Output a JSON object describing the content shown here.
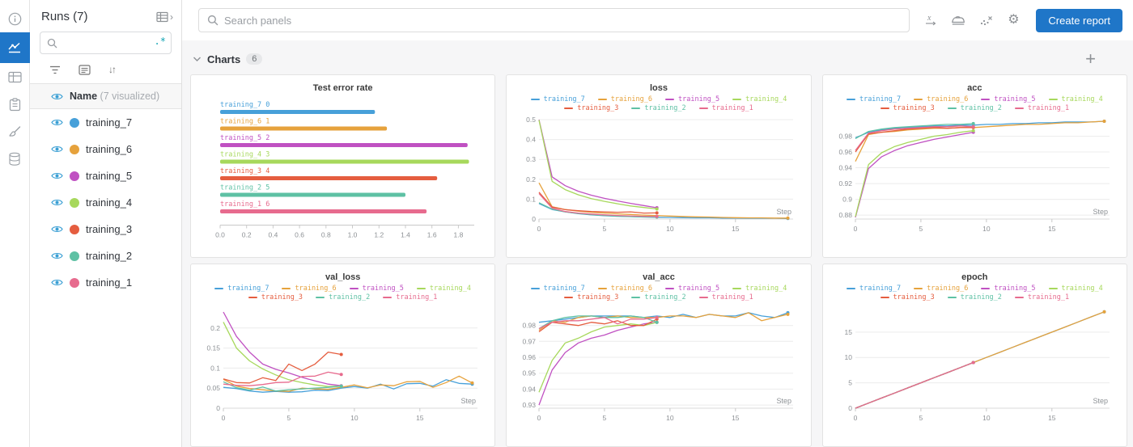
{
  "rail": {
    "items": [
      {
        "name": "info-icon",
        "active": false
      },
      {
        "name": "line-chart-icon",
        "active": true
      },
      {
        "name": "table-icon",
        "active": false
      },
      {
        "name": "clipboard-icon",
        "active": false
      },
      {
        "name": "brush-icon",
        "active": false
      },
      {
        "name": "database-icon",
        "active": false
      }
    ]
  },
  "runs_panel": {
    "title": "Runs (7)",
    "search_value": "",
    "regex_toggle": ".*",
    "name_label": "Name",
    "visualized_label": "(7 visualized)",
    "runs": [
      {
        "name": "training_7",
        "color": "#47a0d9"
      },
      {
        "name": "training_6",
        "color": "#e6a23c"
      },
      {
        "name": "training_5",
        "color": "#c051c2"
      },
      {
        "name": "training_4",
        "color": "#a7d85c"
      },
      {
        "name": "training_3",
        "color": "#e55d3f"
      },
      {
        "name": "training_2",
        "color": "#5ec1a4"
      },
      {
        "name": "training_1",
        "color": "#e76b8e"
      }
    ]
  },
  "topbar": {
    "search_placeholder": "Search panels",
    "create_report_label": "Create report",
    "icons": [
      "x-axis-icon",
      "smoothing-iron-icon",
      "outlier-scatter-icon",
      "settings-gear-icon"
    ]
  },
  "charts_section": {
    "label": "Charts",
    "count": "6",
    "add_label": "+"
  },
  "accent": {
    "primary_blue": "#1f76c8",
    "eye_blue": "#3a9fd4",
    "regex_teal": "#12a4b4"
  },
  "chart_data": [
    {
      "type": "bar",
      "orientation": "horizontal",
      "title": "Test error rate",
      "categories": [
        "training_7 0",
        "training_6 1",
        "training_5 2",
        "training_4 3",
        "training_3 4",
        "training_2 5",
        "training_1 6"
      ],
      "values": [
        1.17,
        1.26,
        1.87,
        1.88,
        1.64,
        1.4,
        1.56
      ],
      "xlim": [
        0,
        1.92
      ],
      "xticks": [
        0,
        0.2,
        0.4,
        0.6,
        0.8,
        1.0,
        1.2,
        1.4,
        1.6,
        1.8
      ],
      "xtick_labels": [
        "0.0",
        "0.2",
        "0.4",
        "0.6",
        "0.8",
        "1.0",
        "1.2",
        "1.4",
        "1.6",
        "1.8"
      ]
    },
    {
      "type": "line",
      "title": "loss",
      "xlabel": "Step",
      "xlim": [
        0,
        19.4
      ],
      "xticks": [
        0,
        5,
        10,
        15
      ],
      "xtick_labels": [
        "0",
        "5",
        "10",
        "15"
      ],
      "ylim": [
        0,
        0.5
      ],
      "ytick_values": [
        0,
        0.1,
        0.2,
        0.3,
        0.4,
        0.5
      ],
      "ytick_labels": [
        "0",
        "0.1",
        "0.2",
        "0.3",
        "0.4",
        "0.5"
      ],
      "series": [
        {
          "name": "training_7",
          "values": [
            0.078,
            0.048,
            0.036,
            0.027,
            0.021,
            0.017,
            0.014,
            0.012,
            0.01,
            0.009,
            0.008,
            0.007,
            0.006,
            0.006,
            0.005,
            0.005,
            0.004,
            0.004,
            0.004,
            0.003
          ]
        },
        {
          "name": "training_6",
          "values": [
            0.182,
            0.062,
            0.048,
            0.04,
            0.034,
            0.03,
            0.026,
            0.023,
            0.02,
            0.018,
            0.015,
            0.013,
            0.011,
            0.01,
            0.008,
            0.007,
            0.006,
            0.006,
            0.005,
            0.005
          ]
        },
        {
          "name": "training_5",
          "values": [
            0.5,
            0.212,
            0.168,
            0.14,
            0.12,
            0.104,
            0.091,
            0.079,
            0.068,
            0.057
          ]
        },
        {
          "name": "training_4",
          "values": [
            0.498,
            0.19,
            0.148,
            0.122,
            0.103,
            0.089,
            0.077,
            0.066,
            0.058,
            0.051
          ]
        },
        {
          "name": "training_3",
          "values": [
            0.135,
            0.06,
            0.047,
            0.042,
            0.038,
            0.036,
            0.034,
            0.036,
            0.03,
            0.031
          ]
        },
        {
          "name": "training_2",
          "values": [
            0.082,
            0.05,
            0.036,
            0.028,
            0.022,
            0.018,
            0.015,
            0.013,
            0.011,
            0.01
          ]
        },
        {
          "name": "training_1",
          "values": [
            0.128,
            0.055,
            0.038,
            0.03,
            0.025,
            0.021,
            0.018,
            0.016,
            0.014,
            0.013
          ]
        }
      ]
    },
    {
      "type": "line",
      "title": "acc",
      "xlabel": "Step",
      "xlim": [
        0,
        19.4
      ],
      "xticks": [
        0,
        5,
        10,
        15
      ],
      "xtick_labels": [
        "0",
        "5",
        "10",
        "15"
      ],
      "ylim": [
        0.875,
        1.001
      ],
      "ytick_values": [
        0.88,
        0.9,
        0.92,
        0.94,
        0.96,
        0.98
      ],
      "ytick_labels": [
        "0.88",
        "0.9",
        "0.92",
        "0.94",
        "0.96",
        "0.98"
      ],
      "series": [
        {
          "name": "training_7",
          "values": [
            0.978,
            0.985,
            0.988,
            0.99,
            0.991,
            0.992,
            0.993,
            0.993,
            0.994,
            0.994,
            0.995,
            0.995,
            0.996,
            0.996,
            0.997,
            0.997,
            0.998,
            0.998,
            0.998,
            0.999
          ]
        },
        {
          "name": "training_6",
          "values": [
            0.948,
            0.982,
            0.985,
            0.986,
            0.988,
            0.989,
            0.99,
            0.99,
            0.991,
            0.991,
            0.992,
            0.993,
            0.994,
            0.995,
            0.995,
            0.996,
            0.997,
            0.997,
            0.998,
            0.999
          ]
        },
        {
          "name": "training_5",
          "values": [
            0.877,
            0.939,
            0.954,
            0.962,
            0.968,
            0.972,
            0.976,
            0.979,
            0.982,
            0.985
          ]
        },
        {
          "name": "training_4",
          "values": [
            0.878,
            0.944,
            0.959,
            0.967,
            0.972,
            0.976,
            0.98,
            0.982,
            0.985,
            0.987
          ]
        },
        {
          "name": "training_3",
          "values": [
            0.96,
            0.983,
            0.985,
            0.987,
            0.989,
            0.99,
            0.991,
            0.99,
            0.991,
            0.991
          ]
        },
        {
          "name": "training_2",
          "values": [
            0.977,
            0.986,
            0.989,
            0.991,
            0.992,
            0.993,
            0.994,
            0.995,
            0.995,
            0.996
          ]
        },
        {
          "name": "training_1",
          "values": [
            0.962,
            0.984,
            0.987,
            0.989,
            0.99,
            0.991,
            0.992,
            0.992,
            0.993,
            0.992
          ]
        }
      ]
    },
    {
      "type": "line",
      "title": "val_loss",
      "xlabel": "Step",
      "xlim": [
        0,
        19.4
      ],
      "xticks": [
        0,
        5,
        10,
        15
      ],
      "xtick_labels": [
        "0",
        "5",
        "10",
        "15"
      ],
      "ylim": [
        0,
        0.248
      ],
      "ytick_values": [
        0,
        0.05,
        0.1,
        0.15,
        0.2
      ],
      "ytick_labels": [
        "0",
        "0.05",
        "0.1",
        "0.15",
        "0.2"
      ],
      "series": [
        {
          "name": "training_7",
          "values": [
            0.052,
            0.049,
            0.043,
            0.04,
            0.042,
            0.04,
            0.041,
            0.045,
            0.044,
            0.05,
            0.054,
            0.05,
            0.06,
            0.048,
            0.061,
            0.062,
            0.055,
            0.071,
            0.062,
            0.06
          ]
        },
        {
          "name": "training_6",
          "values": [
            0.072,
            0.055,
            0.049,
            0.046,
            0.043,
            0.042,
            0.05,
            0.048,
            0.047,
            0.052,
            0.058,
            0.051,
            0.058,
            0.056,
            0.066,
            0.067,
            0.052,
            0.064,
            0.08,
            0.063
          ]
        },
        {
          "name": "training_5",
          "values": [
            0.24,
            0.179,
            0.14,
            0.11,
            0.097,
            0.088,
            0.077,
            0.068,
            0.06,
            0.056
          ]
        },
        {
          "name": "training_4",
          "values": [
            0.215,
            0.15,
            0.118,
            0.098,
            0.083,
            0.071,
            0.064,
            0.058,
            0.054,
            0.055
          ]
        },
        {
          "name": "training_3",
          "values": [
            0.073,
            0.064,
            0.063,
            0.076,
            0.069,
            0.11,
            0.094,
            0.11,
            0.14,
            0.134
          ]
        },
        {
          "name": "training_2",
          "values": [
            0.066,
            0.051,
            0.045,
            0.053,
            0.043,
            0.046,
            0.048,
            0.05,
            0.052,
            0.055
          ]
        },
        {
          "name": "training_1",
          "values": [
            0.06,
            0.057,
            0.056,
            0.059,
            0.064,
            0.065,
            0.079,
            0.08,
            0.09,
            0.084
          ]
        }
      ]
    },
    {
      "type": "line",
      "title": "val_acc",
      "xlabel": "Step",
      "xlim": [
        0,
        19.4
      ],
      "xticks": [
        0,
        5,
        10,
        15
      ],
      "xtick_labels": [
        "0",
        "5",
        "10",
        "15"
      ],
      "ylim": [
        0.928,
        0.9905
      ],
      "ytick_values": [
        0.93,
        0.94,
        0.95,
        0.96,
        0.97,
        0.98
      ],
      "ytick_labels": [
        "0.93",
        "0.94",
        "0.95",
        "0.96",
        "0.97",
        "0.98"
      ],
      "series": [
        {
          "name": "training_7",
          "values": [
            0.982,
            0.983,
            0.984,
            0.985,
            0.986,
            0.986,
            0.986,
            0.986,
            0.985,
            0.986,
            0.985,
            0.987,
            0.985,
            0.987,
            0.986,
            0.986,
            0.988,
            0.986,
            0.985,
            0.988
          ]
        },
        {
          "name": "training_6",
          "values": [
            0.977,
            0.983,
            0.982,
            0.985,
            0.986,
            0.985,
            0.986,
            0.985,
            0.985,
            0.985,
            0.986,
            0.986,
            0.985,
            0.987,
            0.986,
            0.985,
            0.988,
            0.983,
            0.985,
            0.987
          ]
        },
        {
          "name": "training_5",
          "values": [
            0.93,
            0.952,
            0.963,
            0.969,
            0.972,
            0.974,
            0.977,
            0.979,
            0.981,
            0.982
          ]
        },
        {
          "name": "training_4",
          "values": [
            0.938,
            0.958,
            0.969,
            0.972,
            0.976,
            0.979,
            0.98,
            0.981,
            0.98,
            0.982
          ]
        },
        {
          "name": "training_3",
          "values": [
            0.976,
            0.982,
            0.981,
            0.98,
            0.982,
            0.981,
            0.983,
            0.98,
            0.98,
            0.984
          ]
        },
        {
          "name": "training_2",
          "values": [
            0.978,
            0.983,
            0.985,
            0.986,
            0.986,
            0.985,
            0.985,
            0.986,
            0.985,
            0.982
          ]
        },
        {
          "name": "training_1",
          "values": [
            0.978,
            0.982,
            0.983,
            0.983,
            0.984,
            0.985,
            0.981,
            0.984,
            0.984,
            0.985
          ]
        }
      ]
    },
    {
      "type": "line",
      "title": "epoch",
      "xlabel": "Step",
      "xlim": [
        0,
        19.4
      ],
      "xticks": [
        0,
        5,
        10,
        15
      ],
      "xtick_labels": [
        "0",
        "5",
        "10",
        "15"
      ],
      "ylim": [
        0,
        19.6
      ],
      "ytick_values": [
        0,
        5,
        10,
        15
      ],
      "ytick_labels": [
        "0",
        "5",
        "10",
        "15"
      ],
      "series": [
        {
          "name": "training_7",
          "values": [
            0,
            1,
            2,
            3,
            4,
            5,
            6,
            7,
            8,
            9,
            10,
            11,
            12,
            13,
            14,
            15,
            16,
            17,
            18,
            19
          ]
        },
        {
          "name": "training_6",
          "values": [
            0,
            1,
            2,
            3,
            4,
            5,
            6,
            7,
            8,
            9,
            10,
            11,
            12,
            13,
            14,
            15,
            16,
            17,
            18,
            19
          ]
        },
        {
          "name": "training_5",
          "values": [
            0,
            1,
            2,
            3,
            4,
            5,
            6,
            7,
            8,
            9
          ]
        },
        {
          "name": "training_4",
          "values": [
            0,
            1,
            2,
            3,
            4,
            5,
            6,
            7,
            8,
            9
          ]
        },
        {
          "name": "training_3",
          "values": [
            0,
            1,
            2,
            3,
            4,
            5,
            6,
            7,
            8,
            9
          ]
        },
        {
          "name": "training_2",
          "values": [
            0,
            1,
            2,
            3,
            4,
            5,
            6,
            7,
            8,
            9
          ]
        },
        {
          "name": "training_1",
          "values": [
            0,
            1,
            2,
            3,
            4,
            5,
            6,
            7,
            8,
            9
          ]
        }
      ]
    }
  ]
}
